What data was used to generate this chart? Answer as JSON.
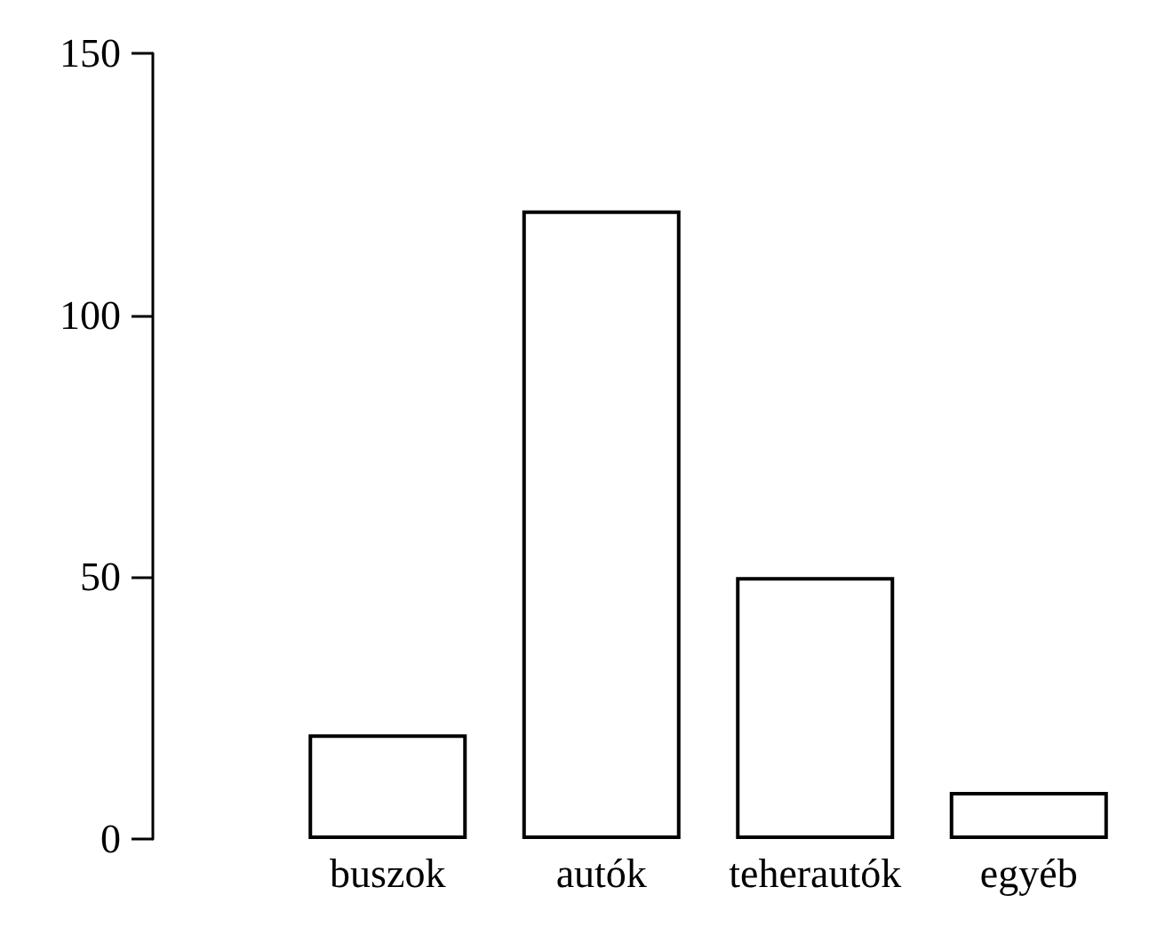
{
  "chart_data": {
    "type": "bar",
    "categories": [
      "buszok",
      "autók",
      "teherautók",
      "egyéb"
    ],
    "values": [
      20,
      120,
      50,
      9
    ],
    "color": "#ffffff",
    "ylim": [
      0,
      150
    ],
    "yticks": [
      0,
      50,
      100,
      150
    ],
    "grid": false
  }
}
